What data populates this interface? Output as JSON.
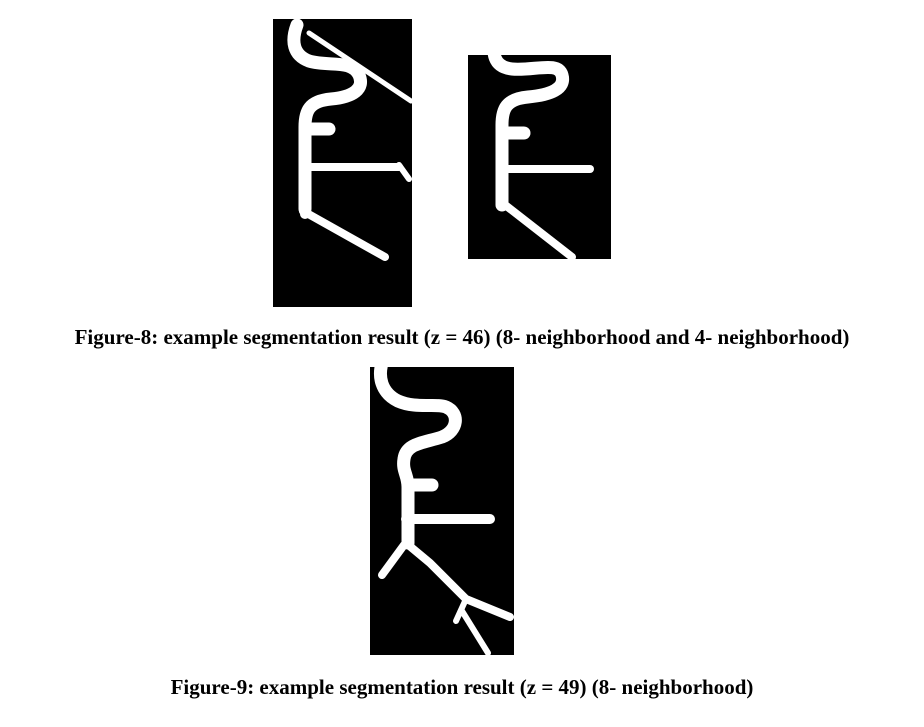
{
  "figures": [
    {
      "id": "figure-8",
      "caption": "Figure-8: example segmentation result (z = 46) (8- neighborhood and 4- neighborhood)",
      "panels": [
        "8-neighborhood",
        "4-neighborhood"
      ]
    },
    {
      "id": "figure-9",
      "caption": "Figure-9: example segmentation result (z = 49) (8- neighborhood)",
      "panels": [
        "8-neighborhood"
      ]
    }
  ],
  "colors": {
    "background": "#000000",
    "segment": "#ffffff",
    "caption": "#000000"
  }
}
